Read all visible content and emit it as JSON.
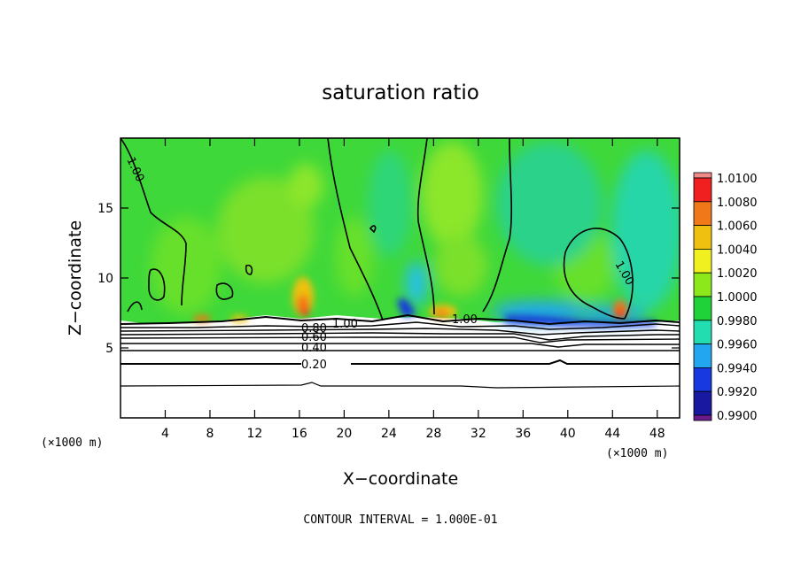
{
  "chart_data": {
    "type": "heatmap",
    "title": "saturation ratio",
    "xlabel": "X−coordinate",
    "ylabel": "Z−coordinate",
    "x_unit": "(×1000 m)",
    "z_unit": "(×1000 m)",
    "xlim": [
      0,
      50
    ],
    "ylim": [
      0,
      20
    ],
    "x_ticks": [
      4,
      8,
      12,
      16,
      20,
      24,
      28,
      32,
      36,
      40,
      44,
      48
    ],
    "y_ticks": [
      5,
      10,
      15
    ],
    "colorbar": {
      "levels": [
        "1.0100",
        "1.0080",
        "1.0060",
        "1.0040",
        "1.0020",
        "1.0000",
        "0.9980",
        "0.9960",
        "0.9940",
        "0.9920",
        "0.9900"
      ],
      "colors": [
        "#f08a8a",
        "#f02020",
        "#f07818",
        "#f0c010",
        "#f0f020",
        "#8ce81a",
        "#1fd23a",
        "#22ddb0",
        "#22a6f0",
        "#1838e0",
        "#1818a0",
        "#6a1a8a"
      ]
    },
    "contour_labels": [
      "1.00",
      "1.00",
      "1.00",
      "1.00",
      "0.80",
      "0.60",
      "0.40",
      "0.20"
    ],
    "contour_interval": "CONTOUR INTERVAL = 1.000E-01"
  }
}
